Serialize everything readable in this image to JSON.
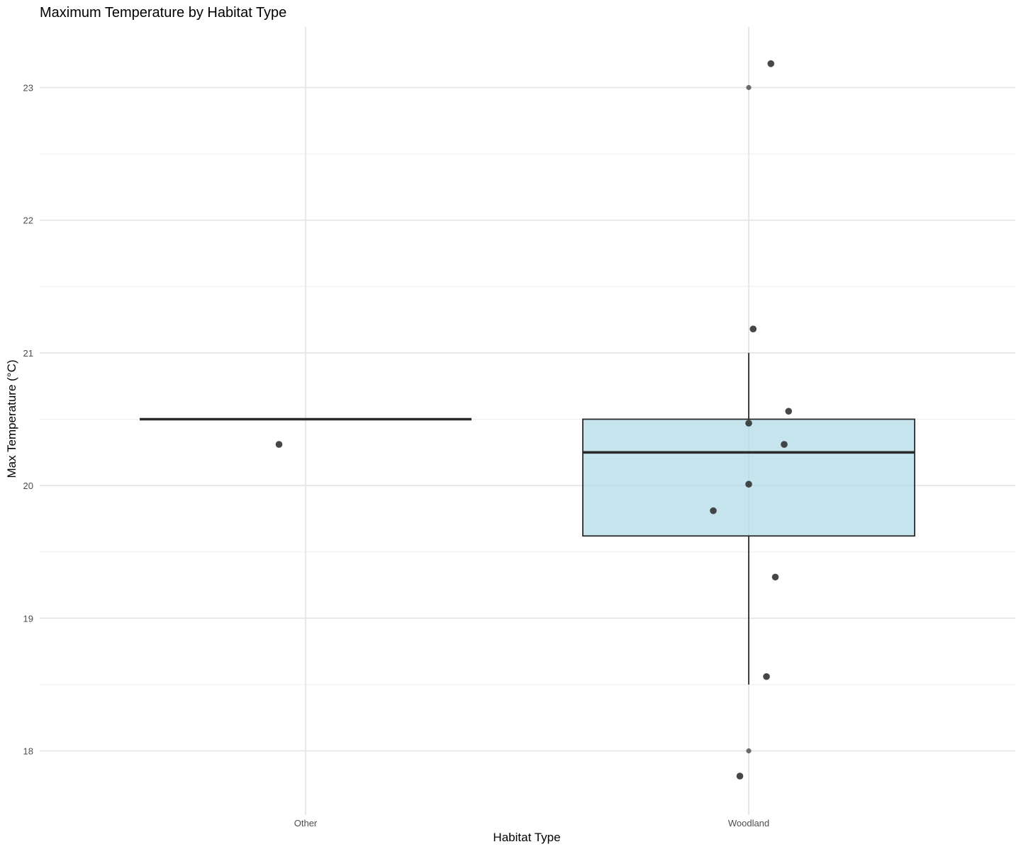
{
  "chart_data": {
    "type": "box",
    "title": "Maximum Temperature by Habitat Type",
    "xlabel": "Habitat Type",
    "ylabel": "Max Temperature (°C)",
    "ylim": [
      17.55,
      23.45
    ],
    "yticks": [
      18,
      19,
      20,
      21,
      22,
      23
    ],
    "grid": true,
    "legend": "none",
    "categories": [
      "Other",
      "Woodland"
    ],
    "boxes": [
      {
        "category": "Other",
        "q1": 20.5,
        "median": 20.5,
        "q3": 20.5,
        "whisker_low": 20.5,
        "whisker_high": 20.5,
        "outliers": []
      },
      {
        "category": "Woodland",
        "q1": 19.62,
        "median": 20.25,
        "q3": 20.5,
        "whisker_low": 18.5,
        "whisker_high": 21.0,
        "outliers": [
          18.0,
          23.0
        ]
      }
    ],
    "points": [
      {
        "category": "Other",
        "jitter": -0.06,
        "y": 20.31
      },
      {
        "category": "Woodland",
        "jitter": 0.05,
        "y": 23.18
      },
      {
        "category": "Woodland",
        "jitter": 0.01,
        "y": 21.18
      },
      {
        "category": "Woodland",
        "jitter": 0.09,
        "y": 20.56
      },
      {
        "category": "Woodland",
        "jitter": 0.0,
        "y": 20.47
      },
      {
        "category": "Woodland",
        "jitter": 0.08,
        "y": 20.31
      },
      {
        "category": "Woodland",
        "jitter": 0.0,
        "y": 20.01
      },
      {
        "category": "Woodland",
        "jitter": -0.08,
        "y": 19.81
      },
      {
        "category": "Woodland",
        "jitter": 0.06,
        "y": 19.31
      },
      {
        "category": "Woodland",
        "jitter": 0.04,
        "y": 18.56
      },
      {
        "category": "Woodland",
        "jitter": -0.02,
        "y": 17.81
      }
    ],
    "colors": {
      "box_fill": "#add8e6",
      "box_stroke": "#2b2b2b",
      "point": "#333333",
      "outlier": "#555555",
      "grid_major": "#e3e3e3",
      "grid_minor": "#eeeeee"
    }
  }
}
